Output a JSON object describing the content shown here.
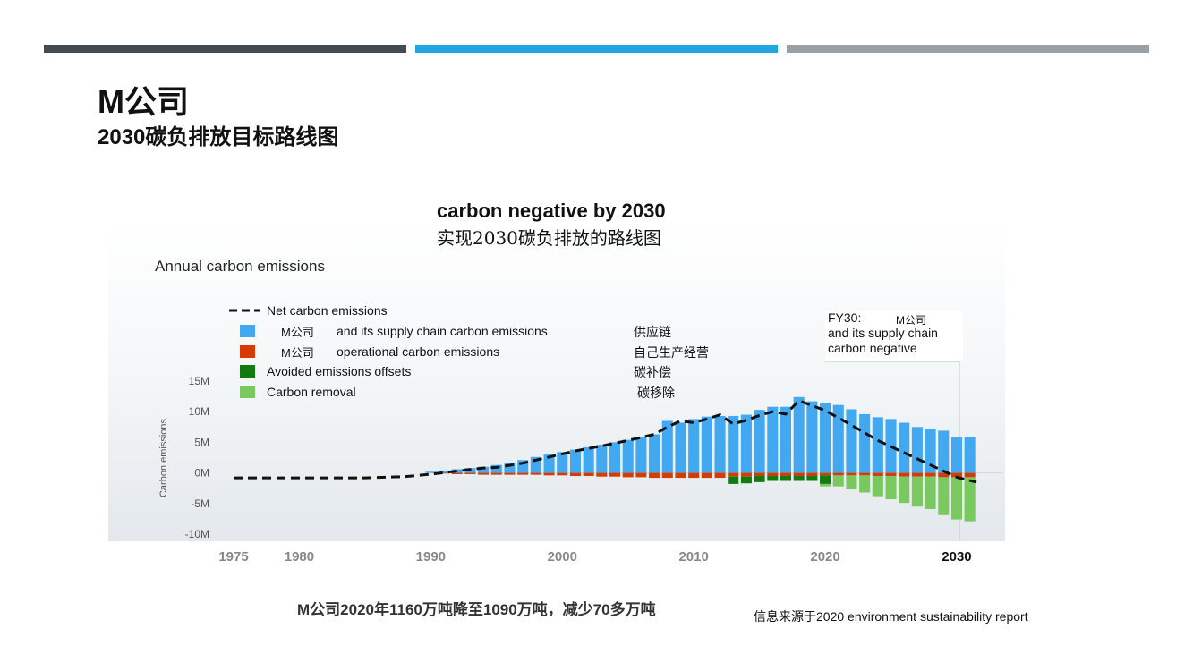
{
  "header": {
    "company": "M公司",
    "subtitle": "2030碳负排放目标路线图",
    "bar_colors": [
      "#434a50",
      "#1fa6e0",
      "#9ba0a6"
    ]
  },
  "chart_data": {
    "type": "bar",
    "title": "carbon negative by 2030",
    "title_cn": "实现2030碳负排放的路线图",
    "subtitle": "Annual carbon emissions",
    "ylabel": "Carbon emissions",
    "ylim": [
      -10,
      15
    ],
    "yticks": [
      15,
      10,
      5,
      0,
      -5,
      -10
    ],
    "ytick_labels": [
      "15M",
      "10M",
      "5M",
      "0M",
      "-5M",
      "-10M"
    ],
    "xticks": [
      1975,
      1980,
      1990,
      2000,
      2010,
      2020,
      2030
    ],
    "xlim": [
      1975,
      2031.5
    ],
    "legend": [
      {
        "label": "Net carbon emissions",
        "color": "#111111",
        "style": "dash",
        "company": "",
        "cn": ""
      },
      {
        "label": "and its supply chain carbon emissions",
        "color": "#42a8f0",
        "style": "box",
        "company": "M公司",
        "cn": "供应链"
      },
      {
        "label": "operational carbon emissions",
        "color": "#d83b01",
        "style": "box",
        "company": "M公司",
        "cn": "自己生产经营"
      },
      {
        "label": "Avoided emissions offsets",
        "color": "#107c10",
        "style": "box",
        "company": "",
        "cn": "碳补偿"
      },
      {
        "label": "Carbon removal",
        "color": "#7ac860",
        "style": "box",
        "company": "",
        "cn": "碳移除"
      }
    ],
    "annotation": {
      "lines": [
        "FY30:",
        "and its supply chain",
        "carbon negative"
      ],
      "company": "M公司",
      "year": 2030.2
    },
    "years": [
      1990,
      1991,
      1992,
      1993,
      1994,
      1995,
      1996,
      1997,
      1998,
      1999,
      2000,
      2001,
      2002,
      2003,
      2004,
      2005,
      2006,
      2007,
      2008,
      2009,
      2010,
      2011,
      2012,
      2013,
      2014,
      2015,
      2016,
      2017,
      2018,
      2019,
      2020,
      2021,
      2022,
      2023,
      2024,
      2025,
      2026,
      2027,
      2028,
      2029,
      2030,
      2031
    ],
    "series": [
      {
        "name": "supply_chain",
        "color": "#42a8f0",
        "values": [
          0.2,
          0.4,
          0.6,
          0.8,
          1.0,
          1.3,
          1.7,
          2.1,
          2.6,
          3.0,
          3.4,
          3.8,
          4.2,
          4.6,
          5.0,
          5.4,
          5.8,
          6.3,
          8.5,
          8.2,
          8.8,
          9.2,
          9.3,
          9.3,
          9.5,
          10.3,
          10.8,
          10.8,
          12.4,
          11.7,
          11.4,
          11.1,
          10.4,
          9.6,
          9.1,
          8.8,
          8.2,
          7.5,
          7.2,
          6.9,
          5.8,
          5.9
        ]
      },
      {
        "name": "operational",
        "color": "#d83b01",
        "values": [
          0,
          -0.1,
          -0.2,
          -0.2,
          -0.3,
          -0.3,
          -0.3,
          -0.3,
          -0.3,
          -0.4,
          -0.4,
          -0.5,
          -0.5,
          -0.6,
          -0.6,
          -0.7,
          -0.7,
          -0.8,
          -0.8,
          -0.8,
          -0.8,
          -0.8,
          -0.8,
          -0.6,
          -0.6,
          -0.5,
          -0.5,
          -0.5,
          -0.5,
          -0.5,
          -0.4,
          -0.4,
          -0.4,
          -0.4,
          -0.5,
          -0.5,
          -0.6,
          -0.6,
          -0.6,
          -0.7,
          -0.7,
          -0.7
        ]
      },
      {
        "name": "avoided",
        "color": "#107c10",
        "values": [
          0,
          0,
          0,
          0,
          0,
          0,
          0,
          0,
          0,
          0,
          0,
          0,
          0,
          0,
          0,
          0,
          0,
          0,
          0,
          0,
          0,
          0,
          0,
          -1.2,
          -1.1,
          -1.0,
          -0.8,
          -0.8,
          -0.8,
          -0.8,
          -1.4,
          0,
          0,
          0,
          0,
          0,
          0,
          0,
          0,
          0,
          0,
          0
        ]
      },
      {
        "name": "removal",
        "color": "#7ac860",
        "values": [
          0,
          0,
          0,
          0,
          0,
          0,
          0,
          0,
          0,
          0,
          0,
          0,
          0,
          0,
          0,
          0,
          0,
          0,
          0,
          0,
          0,
          0,
          0,
          0,
          0,
          0,
          0,
          0,
          0,
          0,
          -0.4,
          -1.8,
          -2.3,
          -2.8,
          -3.3,
          -3.8,
          -4.3,
          -4.9,
          -5.3,
          -6.2,
          -6.9,
          -7.2
        ]
      }
    ],
    "net_line": {
      "x": [
        1975,
        1980,
        1985,
        1988,
        1990,
        1992,
        1994,
        1995,
        1997,
        1999,
        2001,
        2003,
        2005,
        2007,
        2008,
        2009,
        2010,
        2011,
        2012,
        2013,
        2014,
        2015,
        2016,
        2017,
        2018,
        2019,
        2020,
        2022,
        2024,
        2026,
        2028,
        2030,
        2031.5
      ],
      "y": [
        -0.8,
        -0.8,
        -0.8,
        -0.6,
        -0.2,
        0.3,
        0.8,
        0.9,
        1.6,
        2.6,
        3.6,
        4.4,
        5.3,
        6.3,
        7.5,
        8.5,
        8.2,
        8.8,
        9.5,
        8.0,
        8.6,
        9.4,
        10.0,
        9.6,
        11.8,
        11.0,
        10.2,
        7.8,
        5.3,
        3.3,
        1.3,
        -0.7,
        -1.5
      ]
    }
  },
  "footer": {
    "stat": "M公司2020年1160万吨降至1090万吨，减少70多万吨",
    "source": "信息来源于2020 environment sustainability report"
  }
}
